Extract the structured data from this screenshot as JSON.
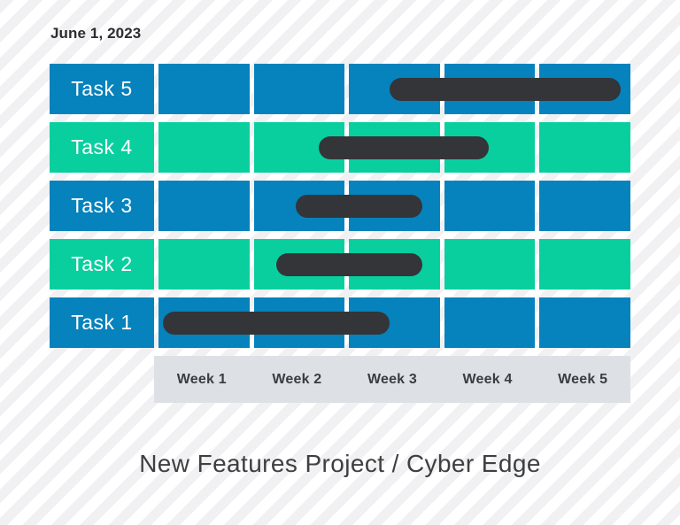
{
  "header": {
    "date": "June 1, 2023"
  },
  "footer": {
    "title": "New Features Project / Cyber Edge"
  },
  "colors": {
    "blue": "#0682bd",
    "green": "#09cf9f",
    "bar": "#333538",
    "week_band": "#dde0e4",
    "stripe": "#f1f1f3",
    "label_text": "#ffffff",
    "dark_text": "#2b2d2f"
  },
  "chart_data": {
    "type": "bar",
    "subtype": "gantt",
    "title": "New Features Project / Cyber Edge",
    "date_annotation": "June 1, 2023",
    "x_axis": {
      "unit": "weeks",
      "min": 0,
      "max": 5,
      "grid": true
    },
    "week_labels": [
      "Week 1",
      "Week 2",
      "Week 3",
      "Week 4",
      "Week 5"
    ],
    "tasks": [
      {
        "label": "Task 5",
        "row_color": "blue",
        "start_week": 2.45,
        "end_week": 4.9
      },
      {
        "label": "Task 4",
        "row_color": "green",
        "start_week": 1.7,
        "end_week": 3.5
      },
      {
        "label": "Task 3",
        "row_color": "blue",
        "start_week": 1.45,
        "end_week": 2.8
      },
      {
        "label": "Task 2",
        "row_color": "green",
        "start_week": 1.25,
        "end_week": 2.8
      },
      {
        "label": "Task 1",
        "row_color": "blue",
        "start_week": 0.05,
        "end_week": 2.45
      }
    ]
  }
}
